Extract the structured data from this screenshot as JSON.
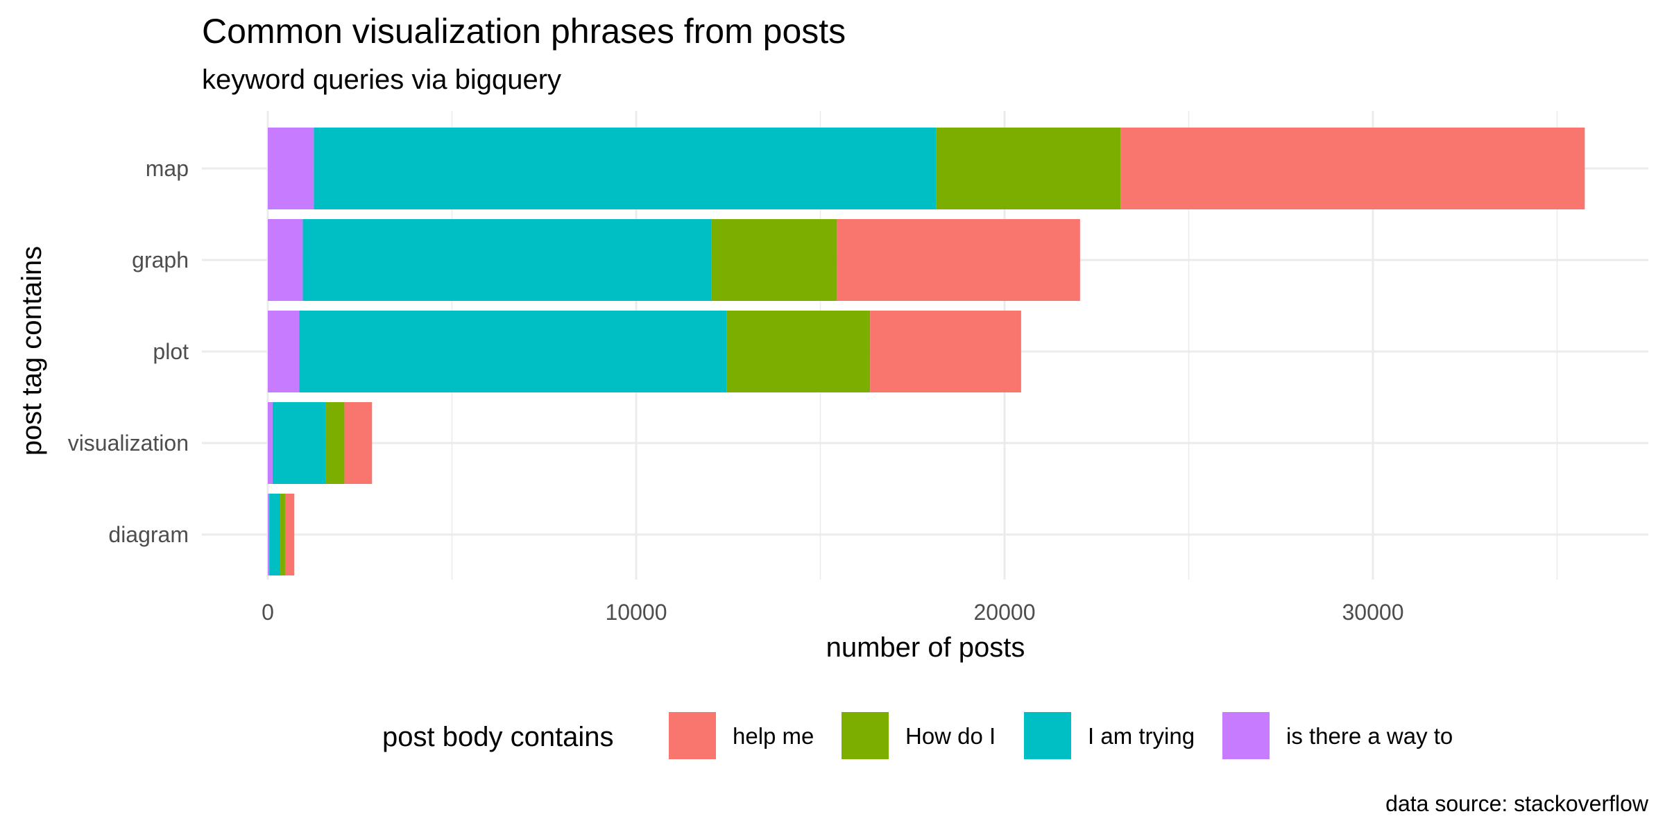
{
  "chart_data": {
    "type": "bar",
    "orientation": "horizontal",
    "stacked": true,
    "title": "Common visualization phrases from posts",
    "subtitle": "keyword queries via bigquery",
    "xlabel": "number of posts",
    "ylabel": "post tag contains",
    "caption": "data source: stackoverflow",
    "xlim": [
      0,
      37000
    ],
    "x_ticks": [
      0,
      10000,
      20000,
      30000
    ],
    "x_tick_labels": [
      "0",
      "10000",
      "20000",
      "30000"
    ],
    "grid": true,
    "legend": {
      "title": "post body contains",
      "position": "bottom"
    },
    "categories": [
      "map",
      "graph",
      "plot",
      "visualization",
      "diagram"
    ],
    "stack_order": [
      "is there a way to",
      "I am trying",
      "How do I",
      "help me"
    ],
    "legend_order": [
      "help me",
      "How do I",
      "I am trying",
      "is there a way to"
    ],
    "series": [
      {
        "name": "help me",
        "color": "#F8766D",
        "values": [
          12600,
          6600,
          4100,
          750,
          250
        ]
      },
      {
        "name": "How do I",
        "color": "#7CAE00",
        "values": [
          5000,
          3400,
          3900,
          500,
          130
        ]
      },
      {
        "name": "I am trying",
        "color": "#00BFC4",
        "values": [
          16900,
          11100,
          11600,
          1450,
          300
        ]
      },
      {
        "name": "is there a way to",
        "color": "#C77CFF",
        "values": [
          1250,
          950,
          850,
          130,
          40
        ]
      }
    ]
  }
}
